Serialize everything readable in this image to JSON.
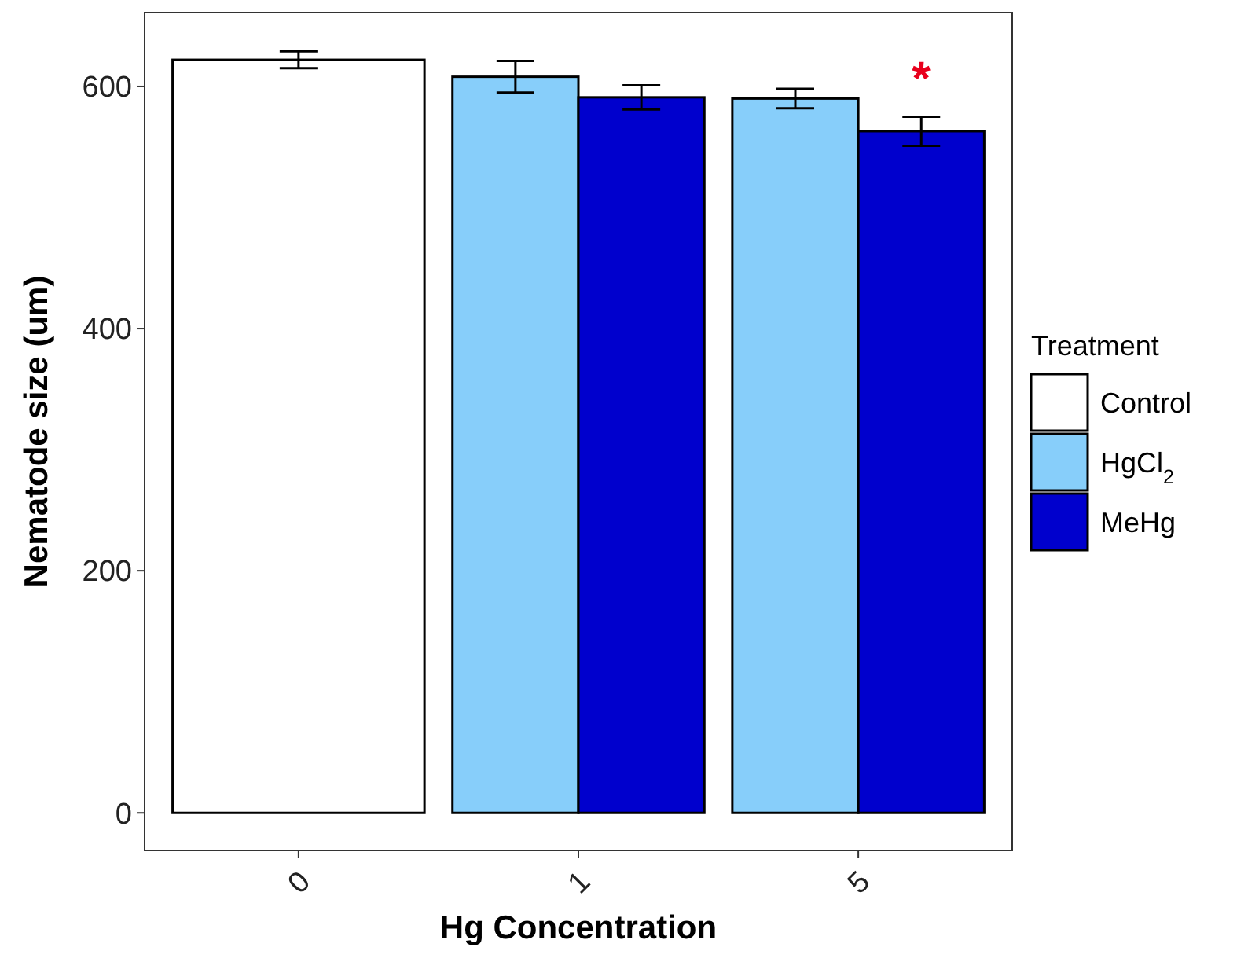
{
  "chart_data": {
    "type": "bar",
    "xlabel": "Hg Concentration",
    "ylabel": "Nematode size (um)",
    "legend_title": "Treatment",
    "categories": [
      "0",
      "1",
      "5"
    ],
    "series": [
      {
        "name": "Control",
        "color": "#ffffff",
        "values": [
          622,
          null,
          null
        ],
        "errors": [
          7,
          null,
          null
        ]
      },
      {
        "name": "HgCl$_{2}$",
        "color": "#87cefa",
        "values": [
          null,
          608,
          590
        ],
        "errors": [
          null,
          13,
          8
        ]
      },
      {
        "name": "MeHg",
        "color": "#0000cd",
        "values": [
          null,
          591,
          563
        ],
        "errors": [
          null,
          10,
          12
        ]
      }
    ],
    "ylim": [
      -31,
      661
    ],
    "yticks": [
      0,
      200,
      400,
      600
    ],
    "grid": false,
    "legend": "right",
    "annotations": [
      "*"
    ]
  }
}
